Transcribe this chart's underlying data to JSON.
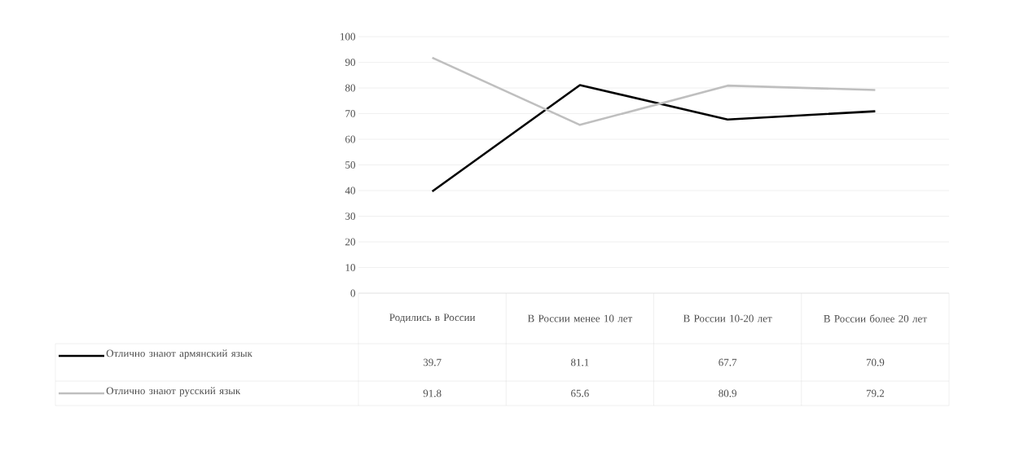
{
  "chart_data": {
    "type": "line",
    "categories": [
      "Родились в России",
      "В России менее 10 лет",
      "В России 10-20 лет",
      "В России более 20 лет"
    ],
    "series": [
      {
        "name": "Отлично знают армянский язык",
        "color": "#000000",
        "values": [
          39.7,
          81.1,
          67.7,
          70.9
        ]
      },
      {
        "name": "Отлично знают русский язык",
        "color": "#bfbfbf",
        "values": [
          91.8,
          65.6,
          80.9,
          79.2
        ]
      }
    ],
    "ylim": [
      0,
      100
    ],
    "yticks": [
      0,
      10,
      20,
      30,
      40,
      50,
      60,
      70,
      80,
      90,
      100
    ],
    "grid": "y",
    "legend": "bottom",
    "data_labels": true,
    "marker": "none",
    "line_style": "solid"
  }
}
